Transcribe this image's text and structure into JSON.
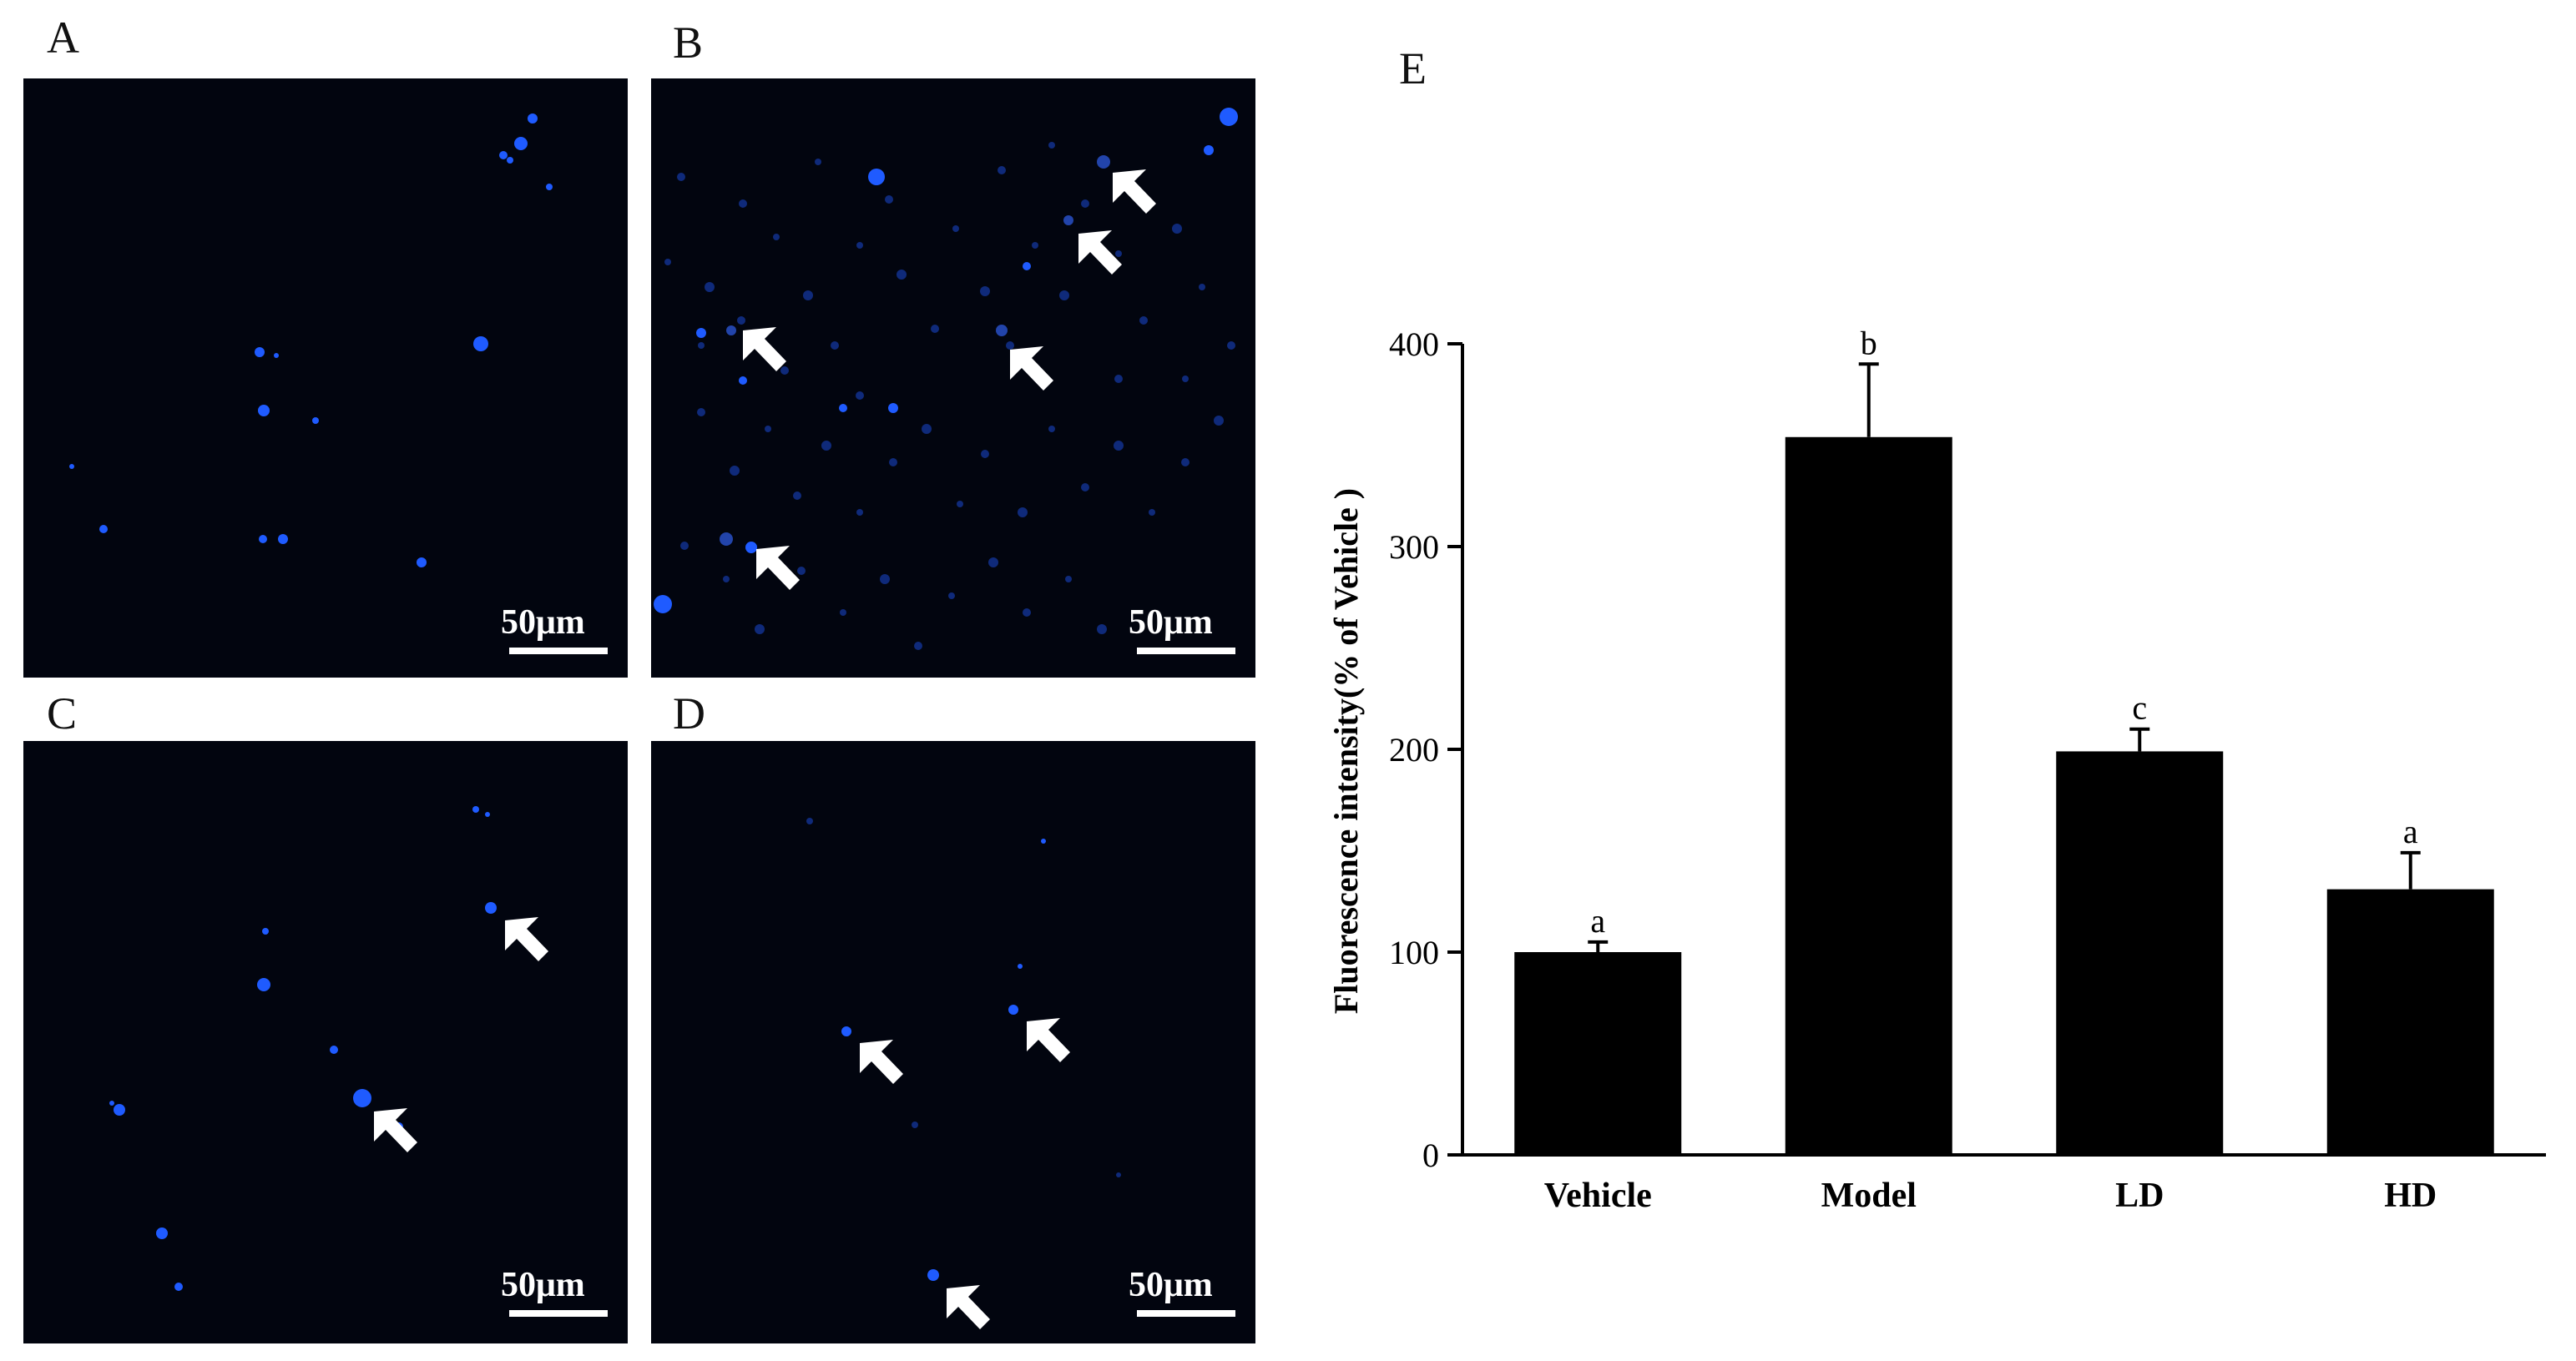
{
  "panels": [
    {
      "letter": "A",
      "scale_label": "50μm"
    },
    {
      "letter": "B",
      "scale_label": "50μm"
    },
    {
      "letter": "C",
      "scale_label": "50μm"
    },
    {
      "letter": "D",
      "scale_label": "50μm"
    }
  ],
  "colors": {
    "cell_bright": "#1f5bff",
    "cell_dim": "#0f2a7a",
    "arrow": "#ffffff",
    "bar": "#000000"
  },
  "chart_data": {
    "panel_letter": "E",
    "type": "bar",
    "categories": [
      "Vehicle",
      "Model",
      "LD",
      "HD"
    ],
    "values": [
      100,
      354,
      199,
      131
    ],
    "errors": [
      5,
      36,
      11,
      18
    ],
    "significance": [
      "a",
      "b",
      "c",
      "a"
    ],
    "ylabel": "Fluorescence intensity(% of Vehicle )",
    "xlabel": "",
    "ylim": [
      0,
      400
    ],
    "yticks": [
      0,
      100,
      200,
      300,
      400
    ],
    "grid": false,
    "legend": "none"
  }
}
